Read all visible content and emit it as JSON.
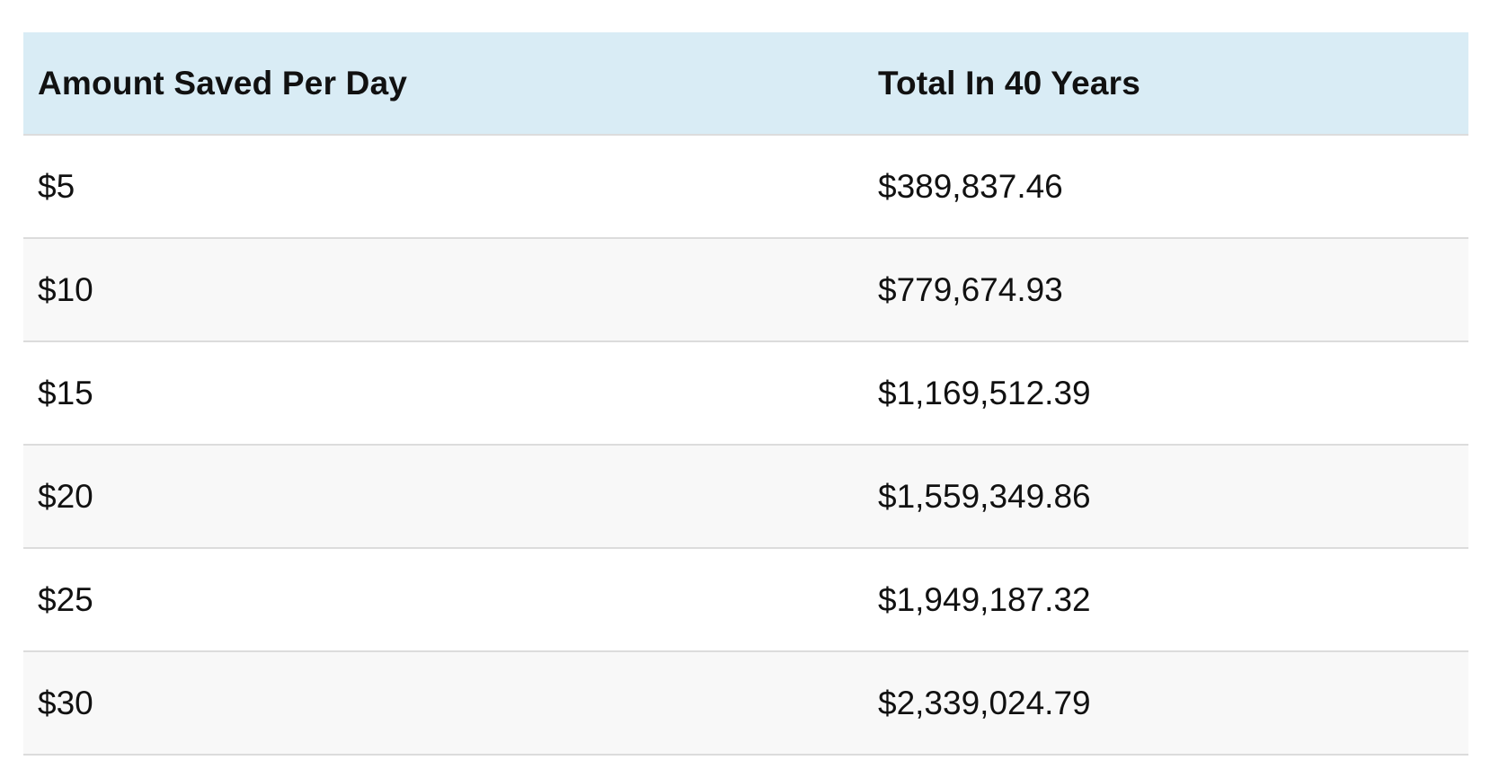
{
  "table": {
    "headers": {
      "amount": "Amount Saved Per Day",
      "total": "Total In 40 Years"
    },
    "rows": [
      {
        "amount": "$5",
        "total": "$389,837.46"
      },
      {
        "amount": "$10",
        "total": "$779,674.93"
      },
      {
        "amount": "$15",
        "total": "$1,169,512.39"
      },
      {
        "amount": "$20",
        "total": "$1,559,349.86"
      },
      {
        "amount": "$25",
        "total": "$1,949,187.32"
      },
      {
        "amount": "$30",
        "total": "$2,339,024.79"
      }
    ]
  },
  "colors": {
    "header_bg": "#d9ecf5",
    "row_alt_bg": "#f8f8f8",
    "border": "#dcdcdc"
  }
}
